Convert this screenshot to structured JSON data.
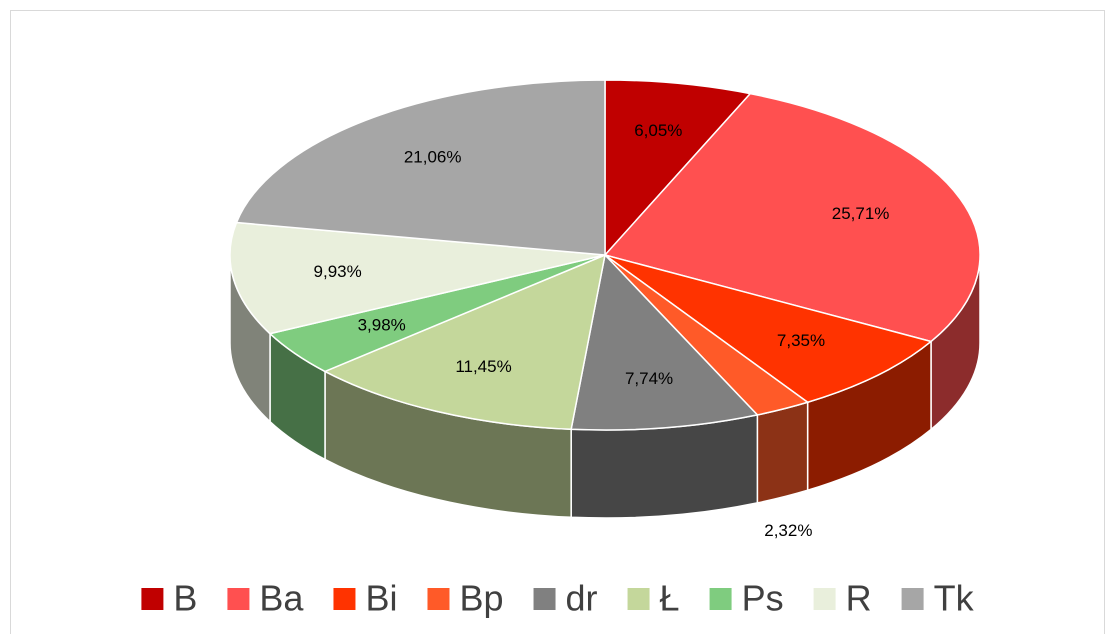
{
  "chart_data": {
    "type": "pie",
    "categories": [
      "B",
      "Ba",
      "Bi",
      "Bp",
      "dr",
      "Ł",
      "Ps",
      "R",
      "Tk"
    ],
    "values": [
      6.05,
      25.71,
      7.35,
      2.32,
      7.74,
      11.45,
      3.98,
      9.93,
      21.06
    ],
    "value_labels": [
      "6,05%",
      "25,71%",
      "7,35%",
      "2,32%",
      "7,74%",
      "11,45%",
      "3,98%",
      "9,93%",
      "21,06%"
    ],
    "colors": [
      "#c00000",
      "#ff5050",
      "#ff3300",
      "#ff5a28",
      "#808080",
      "#c4d79b",
      "#7fcc7f",
      "#e9efdc",
      "#a6a6a6"
    ],
    "legend": "bottom"
  }
}
